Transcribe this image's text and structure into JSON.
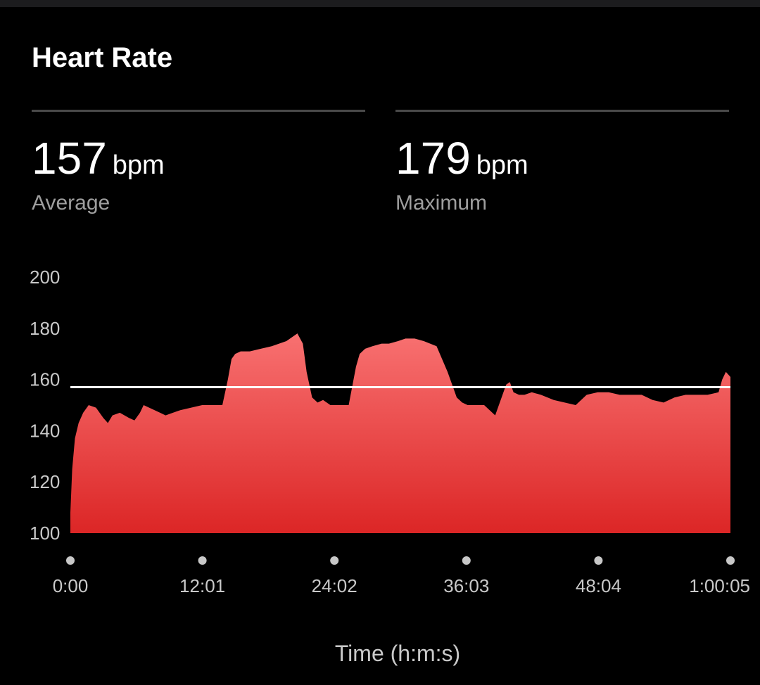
{
  "header": {
    "title": "Heart Rate"
  },
  "stats": [
    {
      "value": "157",
      "unit": "bpm",
      "label": "Average"
    },
    {
      "value": "179",
      "unit": "bpm",
      "label": "Maximum"
    }
  ],
  "colors": {
    "fill_top": "#f87171",
    "fill_bottom": "#dc2626",
    "average_line": "#ffffff",
    "dot": "#c8c8c8"
  },
  "chart_data": {
    "type": "area",
    "title": "",
    "xlabel": "Time (h:m:s)",
    "ylabel": "",
    "ylim": [
      100,
      200
    ],
    "xlim_seconds": [
      0,
      3605
    ],
    "ytick_labels": [
      "100",
      "120",
      "140",
      "160",
      "180",
      "200"
    ],
    "yticks": [
      100,
      120,
      140,
      160,
      180,
      200
    ],
    "xtick_labels": [
      "0:00",
      "12:01",
      "24:02",
      "36:03",
      "48:04",
      "1:00:05"
    ],
    "xticks_seconds": [
      0,
      721,
      1442,
      2163,
      2884,
      3605
    ],
    "average_bpm": 157,
    "grid": false,
    "series": [
      {
        "x_seconds": [
          0,
          10,
          25,
          45,
          70,
          100,
          140,
          180,
          205,
          230,
          270,
          320,
          350,
          380,
          400,
          430,
          460,
          490,
          520,
          560,
          600,
          660,
          720,
          780,
          830,
          860,
          880,
          900,
          930,
          980,
          1040,
          1100,
          1180,
          1240,
          1270,
          1290,
          1320,
          1350,
          1380,
          1420,
          1480,
          1520,
          1560,
          1580,
          1610,
          1650,
          1700,
          1740,
          1790,
          1830,
          1880,
          1930,
          2000,
          2060,
          2090,
          2110,
          2140,
          2170,
          2200,
          2260,
          2320,
          2380,
          2400,
          2420,
          2450,
          2480,
          2520,
          2570,
          2640,
          2700,
          2760,
          2820,
          2880,
          2940,
          3000,
          3060,
          3120,
          3180,
          3240,
          3300,
          3360,
          3420,
          3480,
          3540,
          3560,
          3580,
          3605
        ],
        "y_bpm": [
          108,
          125,
          137,
          143,
          147,
          150,
          149,
          145,
          143,
          146,
          147,
          145,
          144,
          147,
          150,
          149,
          148,
          147,
          146,
          147,
          148,
          149,
          150,
          150,
          150,
          160,
          168,
          170,
          171,
          171,
          172,
          173,
          175,
          178,
          174,
          163,
          153,
          151,
          152,
          150,
          150,
          150,
          165,
          170,
          172,
          173,
          174,
          174,
          175,
          176,
          176,
          175,
          173,
          163,
          157,
          153,
          151,
          150,
          150,
          150,
          146,
          158,
          159,
          155,
          154,
          154,
          155,
          154,
          152,
          151,
          150,
          154,
          155,
          155,
          154,
          154,
          154,
          152,
          151,
          153,
          154,
          154,
          154,
          155,
          160,
          163,
          161
        ]
      }
    ]
  }
}
